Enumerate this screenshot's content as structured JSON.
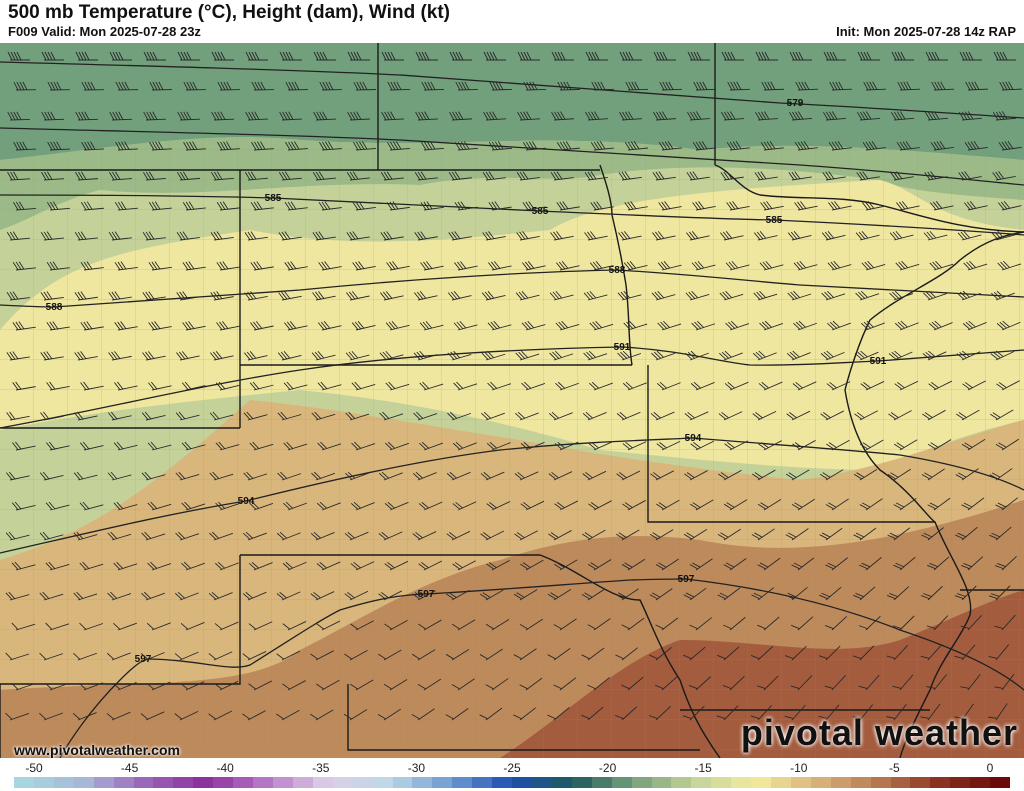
{
  "header": {
    "title": "500 mb Temperature (°C), Height (dam), Wind (kt)",
    "valid": "F009 Valid: Mon 2025-07-28 23z",
    "init": "Init: Mon 2025-07-28 14z RAP"
  },
  "map": {
    "contour_labels": [
      "579",
      "585",
      "585",
      "585",
      "588",
      "588",
      "591",
      "591",
      "594",
      "594",
      "597",
      "597",
      "597"
    ],
    "temperature_colors": {
      "dark_green": "#73a07c",
      "green": "#9cba88",
      "light_green": "#c4d29a",
      "yellow": "#efe6a0",
      "tan": "#d9b67c",
      "brown": "#bd8a5c",
      "dark_brown": "#a45c3e"
    }
  },
  "watermark": {
    "site": "www.pivotalweather.com",
    "brand": "pivotal weather"
  },
  "colorbar": {
    "ticks": [
      "-50",
      "-45",
      "-40",
      "-35",
      "-30",
      "-25",
      "-20",
      "-15",
      "-10",
      "-5",
      "0"
    ],
    "stops": [
      "#a8d6e0",
      "#a7b6d6",
      "#9a64b8",
      "#8c2e9c",
      "#b87cc8",
      "#dcd0e8",
      "#bcd8e8",
      "#6e9ad0",
      "#1e4eb0",
      "#1e5a5c",
      "#78a07c",
      "#c4d29a",
      "#f2ec9c",
      "#d9b27a",
      "#b87a52",
      "#8a3420",
      "#6a0a0a"
    ]
  }
}
